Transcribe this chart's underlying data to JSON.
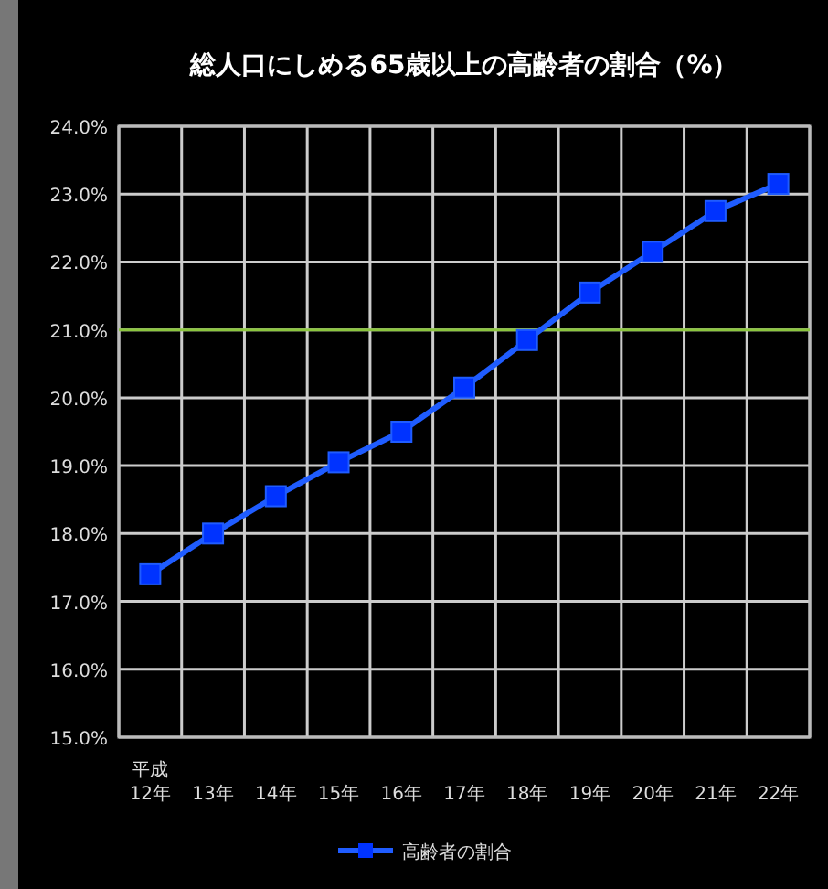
{
  "chart_data": {
    "type": "line",
    "title": "総人口にしめる65歳以上の高齢者の割合（%）",
    "categories": [
      "平成\n12年",
      "13年",
      "14年",
      "15年",
      "16年",
      "17年",
      "18年",
      "19年",
      "20年",
      "21年",
      "22年"
    ],
    "series": [
      {
        "name": "高齢者の割合",
        "color": "#1f5cff",
        "values": [
          17.4,
          18.0,
          18.55,
          19.05,
          19.5,
          20.15,
          20.85,
          21.55,
          22.15,
          22.75,
          23.15
        ]
      }
    ],
    "ylim": [
      15,
      24
    ],
    "yticks": [
      {
        "value": 15,
        "label": "15.0%"
      },
      {
        "value": 16,
        "label": "16.0%"
      },
      {
        "value": 17,
        "label": "17.0%"
      },
      {
        "value": 18,
        "label": "18.0%"
      },
      {
        "value": 19,
        "label": "19.0%"
      },
      {
        "value": 20,
        "label": "20.0%"
      },
      {
        "value": 21,
        "label": "21.0%"
      },
      {
        "value": 22,
        "label": "22.0%"
      },
      {
        "value": 23,
        "label": "23.0%"
      },
      {
        "value": 24,
        "label": "24.0%"
      }
    ],
    "ref_lines": [
      {
        "axis": "y",
        "value": 21,
        "color": "#8cc63f"
      }
    ],
    "grid": true,
    "legend": "bottom",
    "marker": "square"
  }
}
